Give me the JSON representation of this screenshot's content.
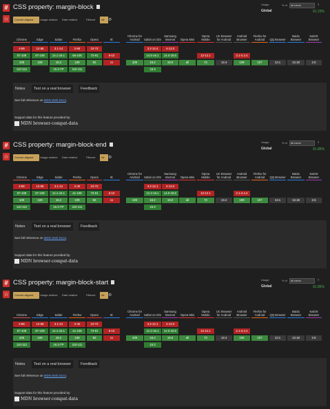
{
  "features": [
    {
      "title": "CSS property: margin-block",
      "usage": {
        "label": "Usage",
        "scope": "Global",
        "pct_of": "% of",
        "selector": "all users",
        "help": "?",
        "percent": "91.23%"
      },
      "tabs": [
        "Current aligned",
        "Usage relative",
        "Date relative",
        "Filtered",
        "All"
      ],
      "browsers": [
        "Chrome",
        "Edge",
        "Safari",
        "Firefox",
        "Opera",
        "IE",
        "Chrome for Android",
        "Safari on iOS",
        "Samsung Internet",
        "Opera Mini",
        "Opera Mobile",
        "UC Browser for Android",
        "Android Browser",
        "Firefox for Android",
        "QQ Browser",
        "Baidu Browser",
        "KaiOS Browser"
      ],
      "rows": [
        [
          "4-86",
          "12-86",
          "3.1-14",
          "2-65",
          "10-72",
          "",
          "",
          "3.2-14.4",
          "4-13.0",
          "",
          "",
          "",
          "",
          "",
          "",
          "",
          ""
        ],
        [
          "87-108",
          "87-108",
          "14.1-16.1",
          "66-108",
          "73-91",
          "6-10",
          "",
          "14.5-16.1",
          "14.0-18.0",
          "",
          "12-12.1",
          "",
          "2.1-4.4.4",
          "",
          "",
          "",
          ""
        ],
        [
          "109",
          "109",
          "16.2",
          "109",
          "92",
          "11",
          "109",
          "16.2",
          "19.0",
          "all",
          "72",
          "13.4",
          "109",
          "107",
          "13.1",
          "13.18",
          "2.5"
        ],
        [
          "110-112",
          "",
          "16.3-TP",
          "110-111",
          "",
          "",
          "",
          "16.3",
          "",
          "",
          "",
          "",
          "",
          "",
          "",
          "",
          ""
        ]
      ],
      "lower_tabs": [
        "Notes",
        "Test on a real browser",
        "Feedback"
      ],
      "reference_prefix": "See full reference on",
      "reference_link": "MDN Web Docs",
      "reference_suffix": ".",
      "support_text": "Support data for this feature provided by:",
      "mdn_text": "MDN browser-compat-data"
    },
    {
      "title": "CSS property: margin-block-end",
      "usage": {
        "label": "Usage",
        "scope": "Global",
        "pct_of": "% of",
        "selector": "all users",
        "help": "?",
        "percent": "91.85%"
      },
      "tabs": [
        "Current aligned",
        "Usage relative",
        "Date relative",
        "Filtered",
        "All"
      ],
      "browsers": [
        "Chrome",
        "Edge",
        "Safari",
        "Firefox",
        "Opera",
        "IE",
        "Chrome for Android",
        "Safari on iOS",
        "Samsung Internet",
        "Opera Mini",
        "Opera Mobile",
        "UC Browser for Android",
        "Android Browser",
        "Firefox for Android",
        "QQ Browser",
        "Baidu Browser",
        "KaiOS Browser"
      ],
      "rows": [
        [
          "4-86",
          "12-86",
          "3.1-12",
          "2-40",
          "10-72",
          "",
          "",
          "3.2-12.1",
          "4-13.0",
          "",
          "",
          "",
          "",
          "",
          "",
          "",
          ""
        ],
        [
          "87-108",
          "87-108",
          "12.1-16.1",
          "41-108",
          "73-91",
          "6-10",
          "",
          "12.2-16.1",
          "14.0-18.0",
          "",
          "12-12.1",
          "",
          "2.1-4.4.4",
          "",
          "",
          "",
          ""
        ],
        [
          "109",
          "109",
          "16.2",
          "109",
          "92",
          "11",
          "109",
          "16.2",
          "19.0",
          "all",
          "72",
          "13.4",
          "109",
          "107",
          "13.1",
          "13.18",
          "2.5"
        ],
        [
          "110-112",
          "",
          "16.3-TP",
          "110-111",
          "",
          "",
          "",
          "16.3",
          "",
          "",
          "",
          "",
          "",
          "",
          "",
          "",
          ""
        ]
      ],
      "lower_tabs": [
        "Notes",
        "Test on a real browser",
        "Feedback"
      ],
      "reference_prefix": "See full reference on",
      "reference_link": "MDN Web Docs",
      "reference_suffix": ".",
      "support_text": "Support data for this feature provided by:",
      "mdn_text": "MDN browser-compat-data"
    },
    {
      "title": "CSS property: margin-block-start",
      "usage": {
        "label": "Usage",
        "scope": "Global",
        "pct_of": "% of",
        "selector": "all users",
        "help": "?",
        "percent": "91.85%"
      },
      "tabs": [
        "Current aligned",
        "Usage relative",
        "Date relative",
        "Filtered",
        "All"
      ],
      "browsers": [
        "Chrome",
        "Edge",
        "Safari",
        "Firefox",
        "Opera",
        "IE",
        "Chrome for Android",
        "Safari on iOS",
        "Samsung Internet",
        "Opera Mini",
        "Opera Mobile",
        "UC Browser for Android",
        "Android Browser",
        "Firefox for Android",
        "QQ Browser",
        "Baidu Browser",
        "KaiOS Browser"
      ],
      "rows": [
        [
          "4-86",
          "12-86",
          "3.1-12",
          "2-40",
          "10-72",
          "",
          "",
          "3.2-12.1",
          "4-13.0",
          "",
          "",
          "",
          "",
          "",
          "",
          "",
          ""
        ],
        [
          "87-108",
          "87-108",
          "12.1-16.1",
          "41-108",
          "73-91",
          "6-10",
          "",
          "12.2-16.1",
          "14.0-18.0",
          "",
          "12-12.1",
          "",
          "2.1-4.4.4",
          "",
          "",
          "",
          ""
        ],
        [
          "109",
          "109",
          "16.2",
          "109",
          "92",
          "11",
          "109",
          "16.2",
          "19.0",
          "all",
          "72",
          "13.4",
          "109",
          "107",
          "13.1",
          "13.18",
          "2.5"
        ],
        [
          "110-112",
          "",
          "16.3-TP",
          "110-111",
          "",
          "",
          "",
          "16.3",
          "",
          "",
          "",
          "",
          "",
          "",
          "",
          "",
          ""
        ]
      ],
      "lower_tabs": [
        "Notes",
        "Test on a real browser",
        "Feedback"
      ],
      "reference_prefix": "See full reference on",
      "reference_link": "MDN Web Docs",
      "reference_suffix": ".",
      "support_text": "Support data for this feature provided by:",
      "mdn_text": "MDN browser-compat-data"
    }
  ],
  "colors": {
    "supported": "#2f7d32",
    "unsupported": "#b22424",
    "partial": "#6b7a1f",
    "unknown": "#3a3a3a",
    "accent": "#c8a25a",
    "brand": "#c9302c"
  }
}
